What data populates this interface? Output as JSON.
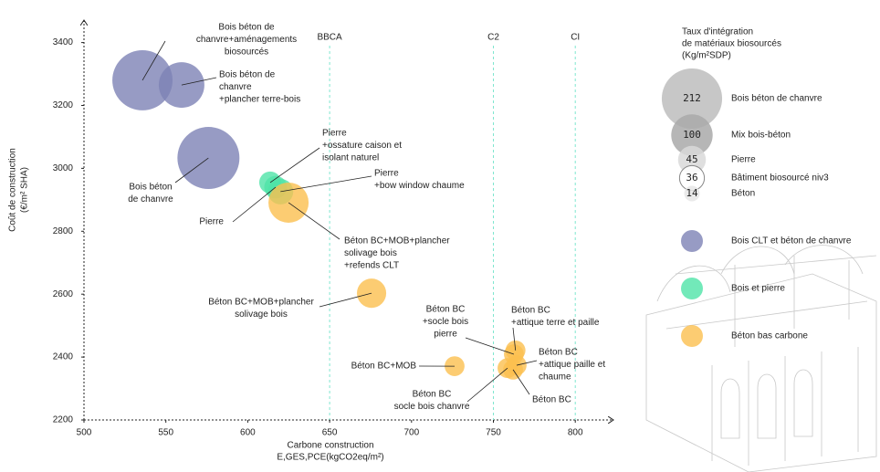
{
  "chart_data": {
    "type": "bubble",
    "xlabel": [
      "Carbone construction",
      "E,GES,PCE(kgCO2eq/m²)"
    ],
    "ylabel": [
      "Coût de construction",
      "(€/m² SHA)"
    ],
    "xlim": [
      500,
      822
    ],
    "ylim": [
      2200,
      3470
    ],
    "xticks": [
      500,
      550,
      600,
      650,
      700,
      750,
      800
    ],
    "yticks": [
      2200,
      2400,
      2600,
      2800,
      3000,
      3200,
      3400
    ],
    "reference_lines": [
      {
        "value": 650,
        "label": "BBCA"
      },
      {
        "value": 750,
        "label": "C2"
      },
      {
        "value": 800,
        "label": "CI"
      }
    ],
    "size_legend": {
      "title": [
        "Taux d'intégration",
        "de matériaux biosourcés",
        "(Kg/m²SDP)"
      ],
      "items": [
        {
          "value": 212,
          "label": "Bois béton de chanvre"
        },
        {
          "value": 100,
          "label": "Mix bois-béton"
        },
        {
          "value": 45,
          "label": "Pierre"
        },
        {
          "value": 36,
          "label": "Bâtiment biosourcé niv3"
        },
        {
          "value": 14,
          "label": "Béton"
        }
      ]
    },
    "series": [
      {
        "name": "Bois CLT et béton de chanvre",
        "color": "#7d82b5",
        "x": [
          535.7,
          559.6,
          576
        ],
        "y": [
          3280,
          3265,
          3033
        ],
        "size": [
          211,
          121,
          224
        ],
        "labels": [
          [
            "Bois béton de",
            "chanvre+aménagements",
            "biosourcés"
          ],
          [
            "Bois béton de",
            "chanvre",
            "+plancher terre-bois"
          ],
          [
            "Bois béton",
            "de chanvre"
          ]
        ]
      },
      {
        "name": "Bois et pierre",
        "color": "#4fe3a8",
        "x": [
          613.7,
          620,
          617
        ],
        "y": [
          2955,
          2926,
          2940
        ],
        "size": [
          28,
          38,
          30
        ],
        "labels": [
          [
            "Pierre",
            "+ossature caison et",
            "isolant naturel"
          ],
          [
            "Pierre",
            "+bow window chaume"
          ],
          [
            "Pierre"
          ]
        ]
      },
      {
        "name": "Béton bas carbone",
        "color": "#fbbf4f",
        "x": [
          624.9,
          675.6,
          726.3,
          762.5,
          763.5,
          764.2,
          758.6,
          762
        ],
        "y": [
          2891,
          2603,
          2371,
          2409,
          2421,
          2374,
          2365,
          2360
        ],
        "size": [
          94,
          50,
          23,
          23,
          23,
          23,
          23,
          23
        ],
        "labels": [
          [
            "Béton BC+MOB+plancher",
            "solivage bois",
            "+refends CLT"
          ],
          [
            "Béton BC+MOB+plancher",
            "solivage bois"
          ],
          [
            "Béton BC+MOB"
          ],
          [
            "Béton BC",
            "+socle bois",
            "pierre"
          ],
          [
            "Béton BC",
            "+attique terre et paille"
          ],
          [
            "Béton BC",
            "+attique paille et",
            "chaume"
          ],
          [
            "Béton BC",
            "socle bois chanvre"
          ],
          [
            "Béton BC"
          ]
        ]
      }
    ]
  }
}
